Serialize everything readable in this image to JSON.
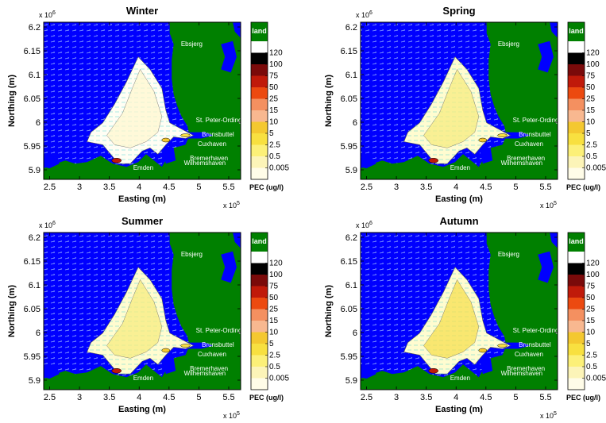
{
  "chart_data": {
    "type": "heatmap",
    "shared": {
      "xlabel": "Easting (m)",
      "ylabel": "Northing (m)",
      "x_exponent_label": "x 10",
      "x_exponent_power": "5",
      "y_exponent_label": "x 10",
      "y_exponent_power": "6",
      "x_ticks": [
        "2.5",
        "3",
        "3.5",
        "4",
        "4.5",
        "5",
        "5.5"
      ],
      "x_tick_values": [
        2.5,
        3,
        3.5,
        4,
        4.5,
        5,
        5.5
      ],
      "y_ticks": [
        "6.2",
        "6.15",
        "6.1",
        "6.05",
        "6",
        "5.95",
        "5.9"
      ],
      "y_tick_values": [
        6.2,
        6.15,
        6.1,
        6.05,
        6.0,
        5.95,
        5.9
      ],
      "xlim": [
        2.4,
        5.7
      ],
      "ylim": [
        5.88,
        6.21
      ],
      "colorbar": {
        "top_label": "land",
        "label": "PEC (ug/l)",
        "levels": [
          "120",
          "100",
          "75",
          "50",
          "25",
          "15",
          "10",
          "5",
          "2.5",
          "0.5",
          "0.005"
        ],
        "colors": [
          "#ffffff",
          "#000000",
          "#7a0a0a",
          "#c01a0a",
          "#ec4a10",
          "#f49060",
          "#f8b890",
          "#f4c830",
          "#f8e040",
          "#fcf078",
          "#fcf4b8",
          "#fffce8"
        ],
        "land_color": "#008000",
        "sea_color": "#0000ff"
      },
      "places": [
        {
          "name": "Ebsjerg",
          "x": 4.7,
          "y": 6.16
        },
        {
          "name": "St. Peter-Ording",
          "x": 4.95,
          "y": 6.0
        },
        {
          "name": "Brunsbuttel",
          "x": 5.05,
          "y": 5.97
        },
        {
          "name": "Cuxhaven",
          "x": 4.98,
          "y": 5.95
        },
        {
          "name": "Bremerhaven",
          "x": 4.85,
          "y": 5.92
        },
        {
          "name": "Wilhemshaven",
          "x": 4.75,
          "y": 5.91
        },
        {
          "name": "Emden",
          "x": 3.9,
          "y": 5.9
        }
      ]
    },
    "panels": [
      {
        "title": "Winter"
      },
      {
        "title": "Spring"
      },
      {
        "title": "Summer"
      },
      {
        "title": "Autumn"
      }
    ]
  }
}
